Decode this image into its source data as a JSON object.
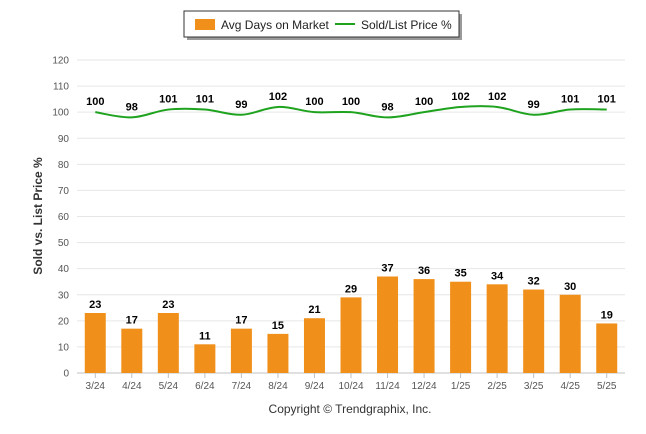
{
  "chart_data": {
    "type": "bar",
    "categories": [
      "3/24",
      "4/24",
      "5/24",
      "6/24",
      "7/24",
      "8/24",
      "9/24",
      "10/24",
      "11/24",
      "12/24",
      "1/25",
      "2/25",
      "3/25",
      "4/25",
      "5/25"
    ],
    "ylabel": "Sold vs. List Price %",
    "ylim": [
      0,
      120
    ],
    "yticks": [
      0,
      10,
      20,
      30,
      40,
      50,
      60,
      70,
      80,
      90,
      100,
      110,
      120
    ],
    "grid": true,
    "legend_position": "top",
    "series": [
      {
        "name": "Avg Days on Market",
        "type": "bar",
        "color": "#f0901a",
        "values": [
          23,
          17,
          23,
          11,
          17,
          15,
          21,
          29,
          37,
          36,
          35,
          34,
          32,
          30,
          19
        ]
      },
      {
        "name": "Sold/List Price %",
        "type": "line",
        "color": "#1fa31f",
        "values": [
          100,
          98,
          101,
          101,
          99,
          102,
          100,
          100,
          98,
          100,
          102,
          102,
          99,
          101,
          101
        ]
      }
    ],
    "footer": "Copyright © Trendgraphix, Inc."
  }
}
